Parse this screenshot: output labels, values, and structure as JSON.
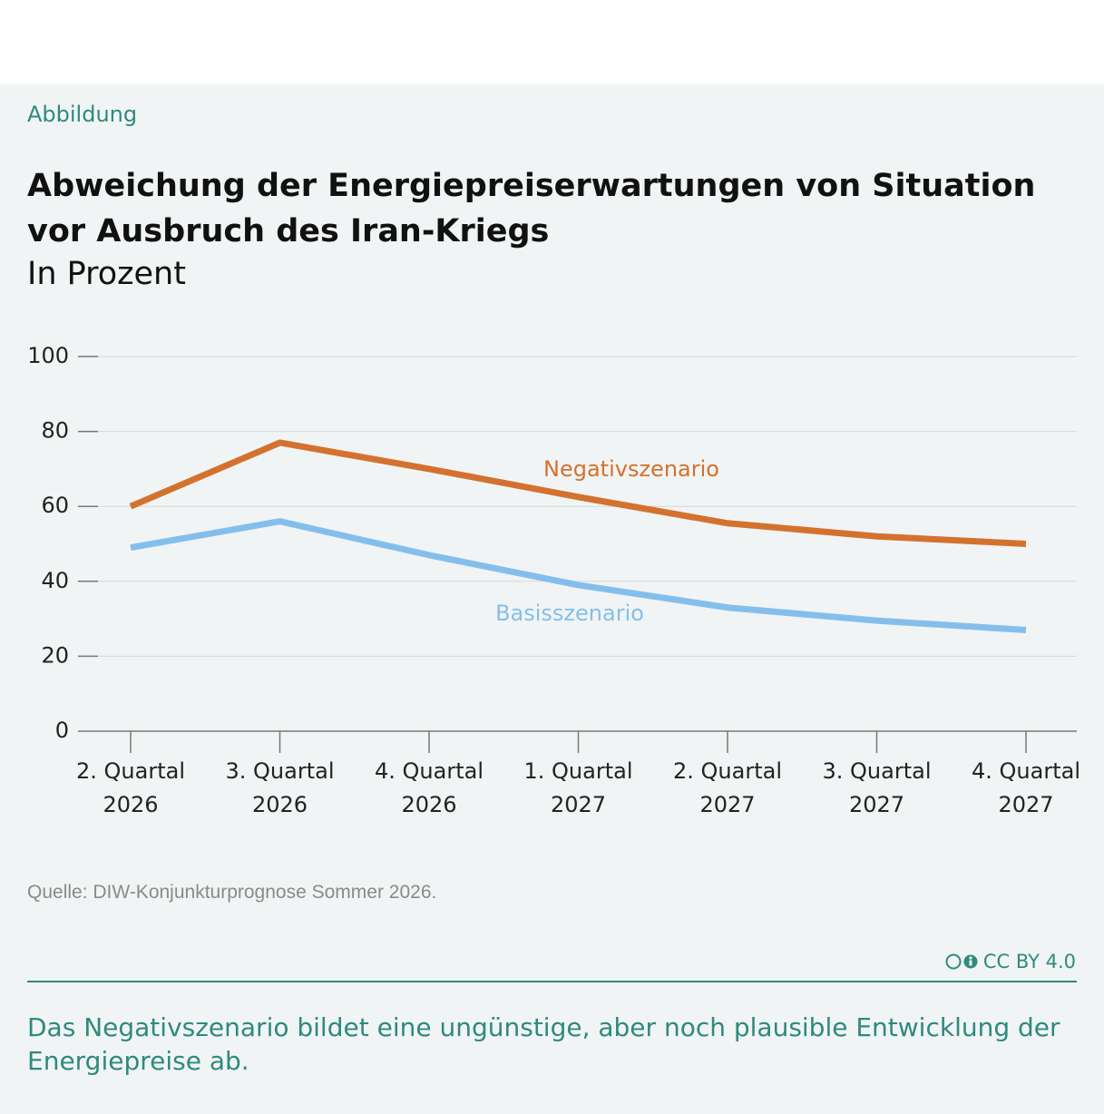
{
  "kicker": "Abbildung",
  "license": "CC BY 4.0",
  "caption": "Das Negativszenario bildet eine ungünstige, aber noch plausible Entwicklung der Energiepreise ab.",
  "chart_data": {
    "type": "line",
    "title": "Abweichung der Energiepreiserwartungen von Situation vor Ausbruch des Iran-Kriegs",
    "subtitle": "In Prozent",
    "source": "Quelle: DIW-Konjunkturprognose Sommer 2026.",
    "categories": [
      [
        "2. Quartal",
        "2026"
      ],
      [
        "3. Quartal",
        "2026"
      ],
      [
        "4. Quartal",
        "2026"
      ],
      [
        "1. Quartal",
        "2027"
      ],
      [
        "2. Quartal",
        "2027"
      ],
      [
        "3. Quartal",
        "2027"
      ],
      [
        "4. Quartal",
        "2027"
      ]
    ],
    "series": [
      {
        "name": "Negativszenario",
        "color": "#d3722e",
        "values": [
          60,
          77,
          70,
          62.5,
          55.5,
          52,
          50
        ]
      },
      {
        "name": "Basisszenario",
        "color": "#84bfeb",
        "values": [
          49,
          56,
          47,
          39,
          33,
          29.5,
          27
        ]
      }
    ],
    "ylim": [
      0,
      100
    ],
    "yticks": [
      0,
      20,
      40,
      60,
      80,
      100
    ],
    "grid": true
  }
}
